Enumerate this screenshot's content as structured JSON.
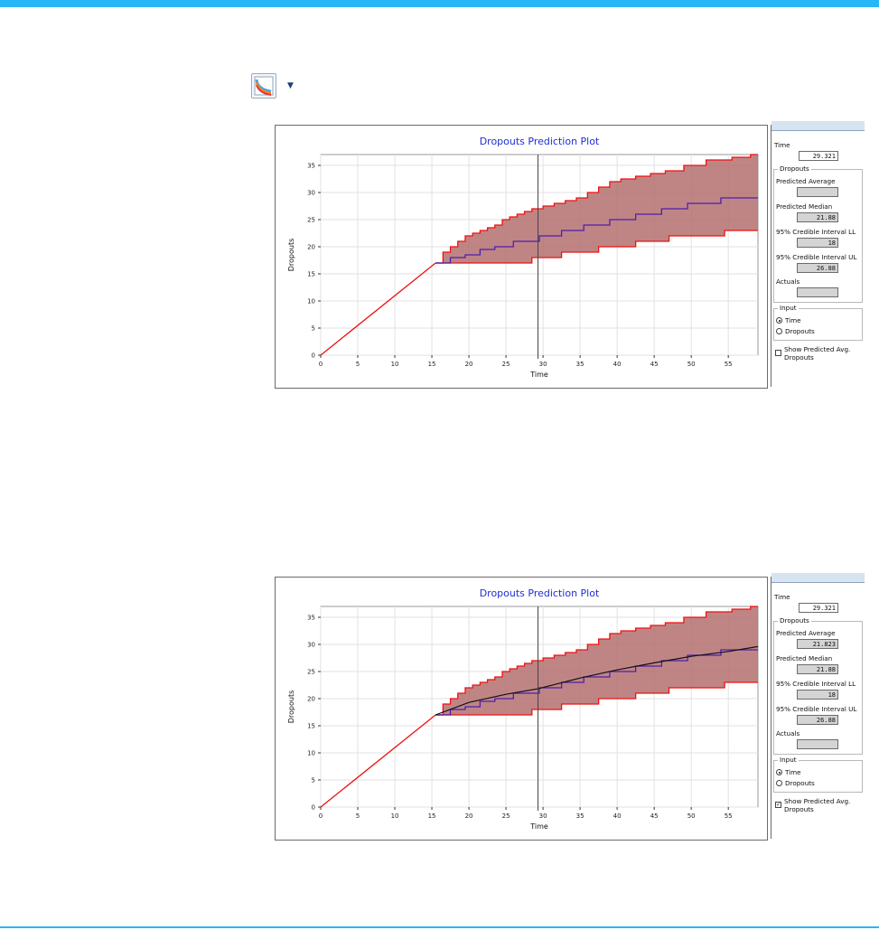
{
  "colors": {
    "topbar": "#29b6f6",
    "bottomline": "#29b6f6",
    "band_fill": "#b47070",
    "band_edge": "#ee1111",
    "median_line": "#4d1fb0",
    "average_line": "#111111",
    "title_color": "#1d2ed6"
  },
  "toolbar": {
    "icon": "plot-icon",
    "dropdown_icon": "chevron-down-icon"
  },
  "panels": [
    {
      "sidepanel": {
        "time_label": "Time",
        "time_value": "29.321",
        "dropouts_group": "Dropouts",
        "predicted_average_label": "Predicted Average",
        "predicted_average_value": "",
        "predicted_median_label": "Predicted Median",
        "predicted_median_value": "21.88",
        "ci_ll_label": "95% Credible Interval LL",
        "ci_ll_value": "18",
        "ci_ul_label": "95% Credible Interval UL",
        "ci_ul_value": "26.88",
        "actuals_label": "Actuals",
        "actuals_value": "",
        "input_group": "Input",
        "radio_time": "Time",
        "radio_dropouts": "Dropouts",
        "show_avg_line1": "Show Predicted Avg.",
        "show_avg_line2": "Dropouts",
        "show_avg_checked": false
      }
    },
    {
      "sidepanel": {
        "time_label": "Time",
        "time_value": "29.321",
        "dropouts_group": "Dropouts",
        "predicted_average_label": "Predicted Average",
        "predicted_average_value": "21.823",
        "predicted_median_label": "Predicted Median",
        "predicted_median_value": "21.88",
        "ci_ll_label": "95% Credible Interval LL",
        "ci_ll_value": "18",
        "ci_ul_label": "95% Credible Interval UL",
        "ci_ul_value": "26.88",
        "actuals_label": "Actuals",
        "actuals_value": "",
        "input_group": "Input",
        "radio_time": "Time",
        "radio_dropouts": "Dropouts",
        "show_avg_line1": "Show Predicted Avg.",
        "show_avg_line2": "Dropouts",
        "show_avg_checked": true
      }
    }
  ],
  "chart_data": [
    {
      "type": "line",
      "title": "Dropouts Prediction Plot",
      "xlabel": "Time",
      "ylabel": "Dropouts",
      "xlim": [
        0,
        59
      ],
      "ylim": [
        0,
        37
      ],
      "xticks": [
        0,
        5,
        10,
        15,
        20,
        25,
        30,
        35,
        40,
        45,
        50,
        55
      ],
      "yticks": [
        0,
        5,
        10,
        15,
        20,
        25,
        30,
        35
      ],
      "grid": true,
      "cursor_time": 29.321,
      "observed": {
        "x": [
          0,
          15.5
        ],
        "y": [
          0,
          17
        ]
      },
      "upper": {
        "x": [
          15.5,
          16.5,
          17.5,
          18.5,
          19.5,
          20.5,
          21.5,
          22.5,
          23.5,
          24.5,
          25.5,
          26.5,
          27.5,
          28.5,
          30,
          31.5,
          33,
          34.5,
          36,
          37.5,
          39,
          40.5,
          42.5,
          44.5,
          46.5,
          49,
          52,
          55.5,
          58,
          59
        ],
        "y": [
          17,
          19,
          20,
          21,
          22,
          22.5,
          23,
          23.5,
          24,
          25,
          25.5,
          26,
          26.5,
          27,
          27.5,
          28,
          28.5,
          29,
          30,
          31,
          32,
          32.5,
          33,
          33.5,
          34,
          35,
          36,
          36.5,
          37,
          37
        ]
      },
      "lower": {
        "x": [
          15.5,
          28.5,
          32.5,
          37.5,
          42.5,
          47,
          54.5,
          59
        ],
        "y": [
          17,
          18,
          19,
          20,
          21,
          22,
          23,
          23
        ]
      },
      "median": {
        "x": [
          15.5,
          17.5,
          19.5,
          21.5,
          23.5,
          26,
          29.5,
          32.5,
          35.5,
          39,
          42.5,
          46,
          49.5,
          54,
          59
        ],
        "y": [
          17,
          18,
          18.5,
          19.5,
          20,
          21,
          22,
          23,
          24,
          25,
          26,
          27,
          28,
          29,
          29
        ]
      },
      "average": null
    },
    {
      "type": "line",
      "title": "Dropouts Prediction Plot",
      "xlabel": "Time",
      "ylabel": "Dropouts",
      "xlim": [
        0,
        59
      ],
      "ylim": [
        0,
        37
      ],
      "xticks": [
        0,
        5,
        10,
        15,
        20,
        25,
        30,
        35,
        40,
        45,
        50,
        55
      ],
      "yticks": [
        0,
        5,
        10,
        15,
        20,
        25,
        30,
        35
      ],
      "grid": true,
      "cursor_time": 29.321,
      "observed": {
        "x": [
          0,
          15.5
        ],
        "y": [
          0,
          17
        ]
      },
      "upper": {
        "x": [
          15.5,
          16.5,
          17.5,
          18.5,
          19.5,
          20.5,
          21.5,
          22.5,
          23.5,
          24.5,
          25.5,
          26.5,
          27.5,
          28.5,
          30,
          31.5,
          33,
          34.5,
          36,
          37.5,
          39,
          40.5,
          42.5,
          44.5,
          46.5,
          49,
          52,
          55.5,
          58,
          59
        ],
        "y": [
          17,
          19,
          20,
          21,
          22,
          22.5,
          23,
          23.5,
          24,
          25,
          25.5,
          26,
          26.5,
          27,
          27.5,
          28,
          28.5,
          29,
          30,
          31,
          32,
          32.5,
          33,
          33.5,
          34,
          35,
          36,
          36.5,
          37,
          37
        ]
      },
      "lower": {
        "x": [
          15.5,
          28.5,
          32.5,
          37.5,
          42.5,
          47,
          54.5,
          59
        ],
        "y": [
          17,
          18,
          19,
          20,
          21,
          22,
          23,
          23
        ]
      },
      "median": {
        "x": [
          15.5,
          17.5,
          19.5,
          21.5,
          23.5,
          26,
          29.5,
          32.5,
          35.5,
          39,
          42.5,
          46,
          49.5,
          54,
          59
        ],
        "y": [
          17,
          18,
          18.5,
          19.5,
          20,
          21,
          22,
          23,
          24,
          25,
          26,
          27,
          28,
          29,
          29
        ]
      },
      "average": {
        "x": [
          15.5,
          20,
          25,
          29.321,
          35,
          40,
          45,
          50,
          55,
          59
        ],
        "y": [
          17,
          19.3,
          20.8,
          21.823,
          23.8,
          25.3,
          26.6,
          27.8,
          28.7,
          29.6
        ]
      }
    }
  ]
}
